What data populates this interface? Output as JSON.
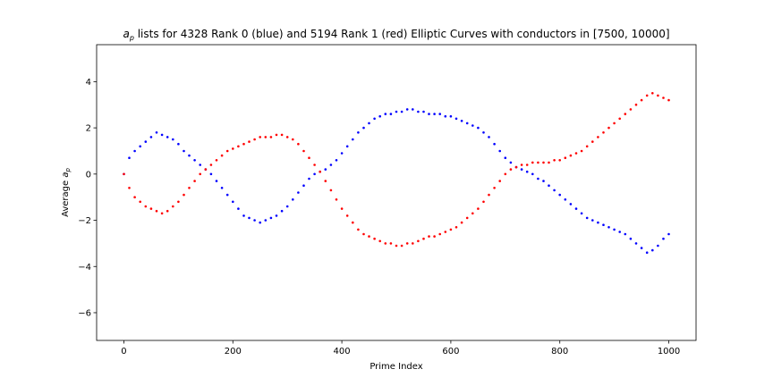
{
  "chart_data": {
    "type": "scatter",
    "title": "a_p lists for 4328 Rank 0 (blue) and 5194 Rank 1 (red) Elliptic Curves with conductors in [7500, 10000]",
    "title_parts": {
      "symbol": "a",
      "subscript": "p",
      "rest": " lists for 4328 Rank 0 (blue) and 5194 Rank 1 (red) Elliptic Curves with conductors in [7500, 10000]"
    },
    "xlabel": "Prime Index",
    "ylabel": "Average a_p",
    "ylabel_parts": {
      "text": "Average ",
      "symbol": "a",
      "subscript": "p"
    },
    "xlim": [
      -50,
      1050
    ],
    "ylim": [
      -7.2,
      5.6
    ],
    "xticks": [
      0,
      200,
      400,
      600,
      800,
      1000
    ],
    "xtick_labels": [
      "0",
      "200",
      "400",
      "600",
      "800",
      "1000"
    ],
    "yticks": [
      -6,
      -4,
      -2,
      0,
      2,
      4
    ],
    "ytick_labels": [
      "−6",
      "−4",
      "−2",
      "0",
      "2",
      "4"
    ],
    "grid": false,
    "series": [
      {
        "color": "#0000ff",
        "x": [
          0,
          10,
          20,
          30,
          40,
          50,
          60,
          70,
          80,
          90,
          100,
          110,
          120,
          130,
          140,
          150,
          160,
          170,
          180,
          190,
          200,
          210,
          220,
          230,
          240,
          250,
          260,
          270,
          280,
          290,
          300,
          310,
          320,
          330,
          340,
          350,
          360,
          370,
          380,
          390,
          400,
          410,
          420,
          430,
          440,
          450,
          460,
          470,
          480,
          490,
          500,
          510,
          520,
          530,
          540,
          550,
          560,
          570,
          580,
          590,
          600,
          610,
          620,
          630,
          640,
          650,
          660,
          670,
          680,
          690,
          700,
          710,
          720,
          730,
          740,
          750,
          760,
          770,
          780,
          790,
          800,
          810,
          820,
          830,
          840,
          850,
          860,
          870,
          880,
          890,
          900,
          910,
          920,
          930,
          940,
          950,
          960,
          970,
          980,
          990,
          1000
        ],
        "y": [
          0,
          0.7,
          1.0,
          1.2,
          1.4,
          1.6,
          1.8,
          1.7,
          1.6,
          1.5,
          1.3,
          1.0,
          0.8,
          0.6,
          0.4,
          0.2,
          0,
          -0.3,
          -0.6,
          -0.9,
          -1.2,
          -1.5,
          -1.8,
          -1.9,
          -2.0,
          -2.1,
          -2.0,
          -1.9,
          -1.8,
          -1.6,
          -1.4,
          -1.1,
          -0.8,
          -0.5,
          -0.2,
          0,
          0.1,
          0.2,
          0.4,
          0.6,
          0.9,
          1.2,
          1.5,
          1.8,
          2.0,
          2.2,
          2.4,
          2.5,
          2.6,
          2.6,
          2.7,
          2.7,
          2.8,
          2.8,
          2.7,
          2.7,
          2.6,
          2.6,
          2.6,
          2.5,
          2.5,
          2.4,
          2.3,
          2.2,
          2.1,
          2.0,
          1.8,
          1.6,
          1.3,
          1.0,
          0.7,
          0.5,
          0.3,
          0.2,
          0.1,
          0,
          -0.2,
          -0.3,
          -0.5,
          -0.7,
          -0.9,
          -1.1,
          -1.3,
          -1.5,
          -1.7,
          -1.9,
          -2.0,
          -2.1,
          -2.2,
          -2.3,
          -2.4,
          -2.5,
          -2.6,
          -2.8,
          -3.0,
          -3.2,
          -3.4,
          -3.3,
          -3.1,
          -2.8,
          -2.6
        ]
      },
      {
        "color": "#ff0000",
        "x": [
          0,
          10,
          20,
          30,
          40,
          50,
          60,
          70,
          80,
          90,
          100,
          110,
          120,
          130,
          140,
          150,
          160,
          170,
          180,
          190,
          200,
          210,
          220,
          230,
          240,
          250,
          260,
          270,
          280,
          290,
          300,
          310,
          320,
          330,
          340,
          350,
          360,
          370,
          380,
          390,
          400,
          410,
          420,
          430,
          440,
          450,
          460,
          470,
          480,
          490,
          500,
          510,
          520,
          530,
          540,
          550,
          560,
          570,
          580,
          590,
          600,
          610,
          620,
          630,
          640,
          650,
          660,
          670,
          680,
          690,
          700,
          710,
          720,
          730,
          740,
          750,
          760,
          770,
          780,
          790,
          800,
          810,
          820,
          830,
          840,
          850,
          860,
          870,
          880,
          890,
          900,
          910,
          920,
          930,
          940,
          950,
          960,
          970,
          980,
          990,
          1000
        ],
        "y": [
          0,
          -0.6,
          -1.0,
          -1.2,
          -1.4,
          -1.5,
          -1.6,
          -1.7,
          -1.6,
          -1.4,
          -1.2,
          -0.9,
          -0.6,
          -0.3,
          0,
          0.2,
          0.4,
          0.6,
          0.8,
          1.0,
          1.1,
          1.2,
          1.3,
          1.4,
          1.5,
          1.6,
          1.6,
          1.6,
          1.7,
          1.7,
          1.6,
          1.5,
          1.3,
          1.0,
          0.7,
          0.4,
          0.1,
          -0.3,
          -0.7,
          -1.1,
          -1.5,
          -1.8,
          -2.1,
          -2.4,
          -2.6,
          -2.7,
          -2.8,
          -2.9,
          -3.0,
          -3.0,
          -3.1,
          -3.1,
          -3.0,
          -3.0,
          -2.9,
          -2.8,
          -2.7,
          -2.7,
          -2.6,
          -2.5,
          -2.4,
          -2.3,
          -2.1,
          -1.9,
          -1.7,
          -1.5,
          -1.2,
          -0.9,
          -0.6,
          -0.3,
          0,
          0.2,
          0.3,
          0.4,
          0.4,
          0.5,
          0.5,
          0.5,
          0.5,
          0.6,
          0.6,
          0.7,
          0.8,
          0.9,
          1.0,
          1.2,
          1.4,
          1.6,
          1.8,
          2.0,
          2.2,
          2.4,
          2.6,
          2.8,
          3.0,
          3.2,
          3.4,
          3.5,
          3.4,
          3.3,
          3.2
        ]
      }
    ]
  }
}
